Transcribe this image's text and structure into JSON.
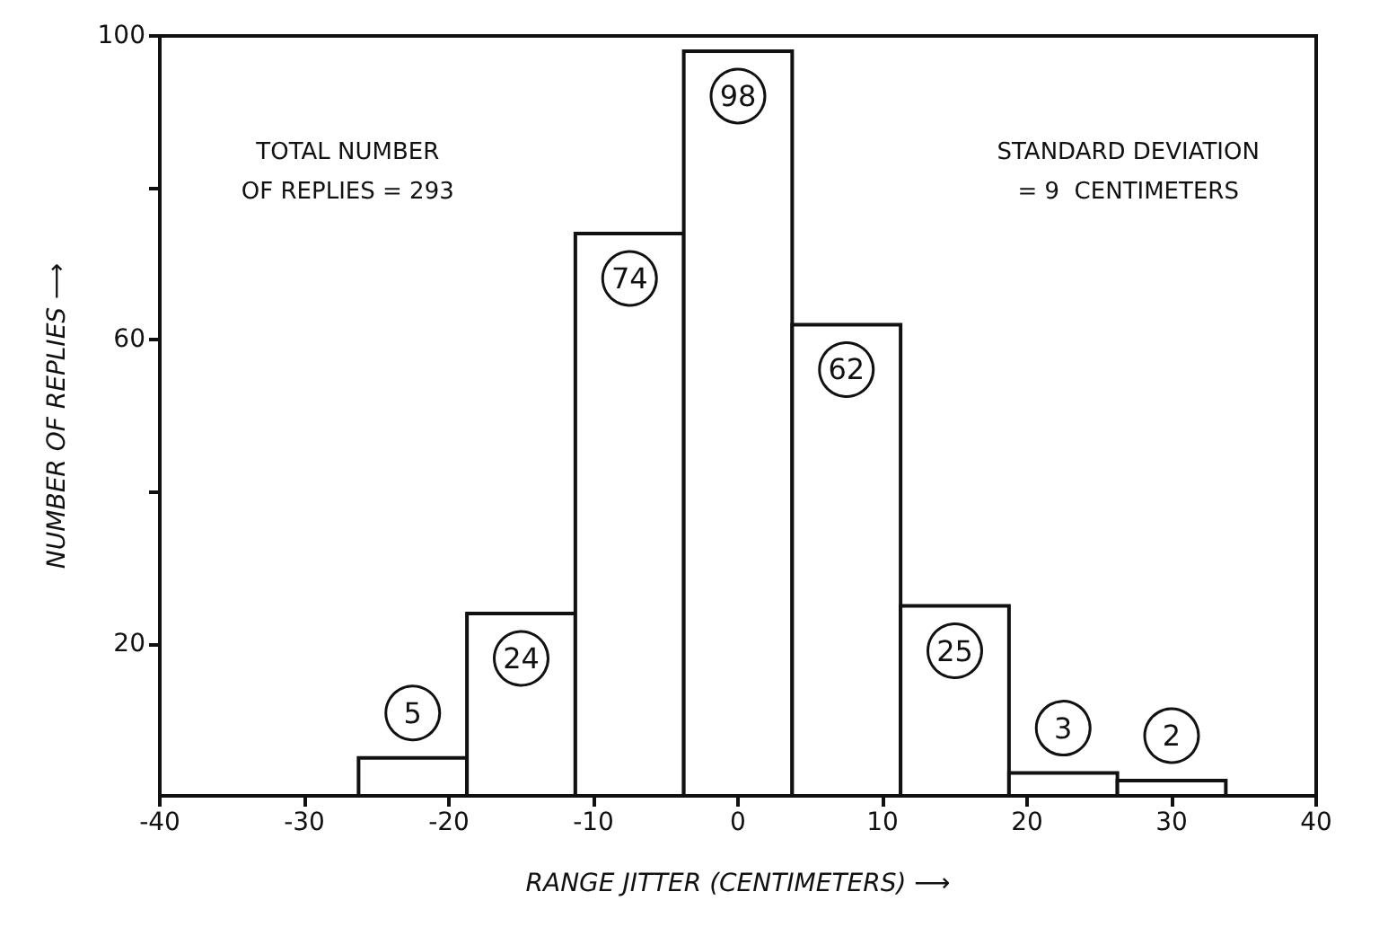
{
  "chart_data": {
    "type": "histogram",
    "xlabel": "RANGE JITTER (CENTIMETERS) ⟶",
    "ylabel": "NUMBER OF REPLIES ⟶",
    "bins": [
      -26.25,
      -18.75,
      -11.25,
      -3.75,
      3.75,
      11.25,
      18.75,
      26.25,
      33.75
    ],
    "values": [
      5,
      24,
      74,
      98,
      62,
      25,
      3,
      2
    ],
    "color": "#ffffff",
    "data_labels": true,
    "xlim": [
      -40,
      40
    ],
    "xticks": [
      -40,
      -30,
      -20,
      -10,
      0,
      10,
      20,
      30,
      40
    ],
    "ylim": [
      0,
      100
    ],
    "yticks": [
      20,
      {
        "value": 40,
        "label": null
      },
      60,
      {
        "value": 80,
        "label": null
      },
      100
    ],
    "grid": false,
    "annotations": [
      "TOTAL NUMBER\nOF REPLIES = 293",
      "STANDARD DEVIATION\n= 9  CENTIMETERS"
    ]
  }
}
